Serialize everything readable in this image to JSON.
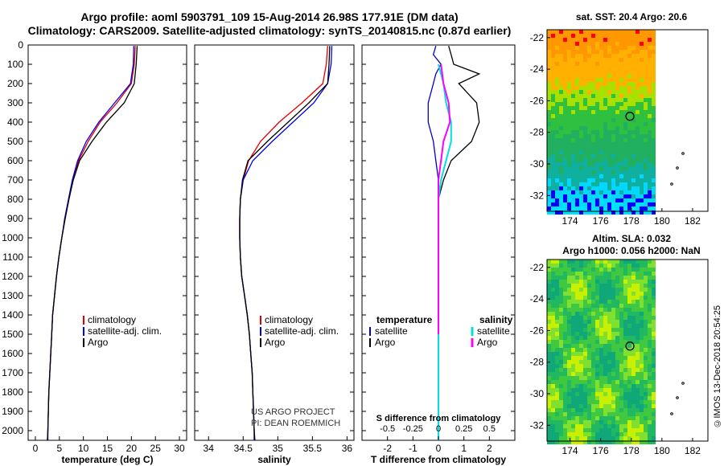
{
  "header": {
    "line1": "Argo profile: aoml 5903791_109 15-Aug-2014 26.98S 177.91E (DM data)",
    "line2": "Climatology: CARS2009. Satellite-adjusted climatology: synTS_20140815.nc (0.87d earlier)"
  },
  "stamp": "©IMOS 13-Dec-2018 20:54:25",
  "colors": {
    "climatology": "#e00000",
    "satellite": "#0000ee",
    "argo": "#000000",
    "t_sat": "#0000cc",
    "s_sat": "#00e0e0",
    "s_argo": "#ff00ff"
  },
  "depth_ticks": [
    "0",
    "100",
    "200",
    "300",
    "400",
    "500",
    "600",
    "700",
    "800",
    "900",
    "1000",
    "1100",
    "1200",
    "1300",
    "1400",
    "1500",
    "1600",
    "1700",
    "1800",
    "1900",
    "2000"
  ],
  "panels": [
    {
      "id": "temperature",
      "xlabel": "temperature (deg C)",
      "xticks": [
        0,
        5,
        10,
        15,
        20,
        25,
        30
      ],
      "xlim": [
        -1.5,
        31.5
      ],
      "legend": [
        "climatology",
        "satellite-adj. clim.",
        "Argo"
      ]
    },
    {
      "id": "salinity",
      "xlabel": "salinity",
      "xticks": [
        34,
        34.5,
        35,
        35.5,
        36
      ],
      "xlim": [
        33.8,
        36.1
      ],
      "legend": [
        "climatology",
        "satellite-adj. clim.",
        "Argo"
      ],
      "note1": "US ARGO PROJECT",
      "note2": "PI: DEAN ROEMMICH"
    },
    {
      "id": "difference",
      "xlabel": "T difference from climatology",
      "xlabel_top": "S difference from climatology",
      "xticks_T": [
        "-2",
        "-1",
        "0",
        "1",
        "2"
      ],
      "xticks_S": [
        "-0.5",
        "-0.25",
        "0",
        "0.25",
        "0.5"
      ],
      "legend_left_title": "temperature",
      "legend_right_title": "salinity",
      "legend_left": [
        "satellite",
        "Argo"
      ],
      "legend_right": [
        "satellite",
        "Argo"
      ]
    }
  ],
  "maps": [
    {
      "title1": "sat. SST: 20.4  Argo: 20.6",
      "title2": "",
      "yticks": [
        "-22",
        "-24",
        "-26",
        "-28",
        "-30",
        "-32"
      ],
      "xticks": [
        "174",
        "176",
        "178",
        "180",
        "182"
      ]
    },
    {
      "title1": "Altim. SLA: 0.032",
      "title2": "Argo h1000: 0.056 h2000: NaN",
      "yticks": [
        "-22",
        "-24",
        "-26",
        "-28",
        "-30",
        "-32"
      ],
      "xticks": [
        "174",
        "176",
        "178",
        "180",
        "182"
      ]
    }
  ],
  "chart_data": [
    {
      "type": "line",
      "title": "",
      "xlabel": "temperature (deg C)",
      "ylabel": "",
      "xlim": [
        -1.5,
        31.5
      ],
      "ylim": [
        2050,
        0
      ],
      "series": [
        {
          "name": "climatology",
          "color": "#e00000",
          "points": [
            [
              20.8,
              5
            ],
            [
              20.6,
              100
            ],
            [
              20.0,
              200
            ],
            [
              17.0,
              300
            ],
            [
              13.5,
              400
            ],
            [
              11.0,
              500
            ],
            [
              9.0,
              600
            ],
            [
              7.8,
              700
            ],
            [
              7.0,
              800
            ],
            [
              6.2,
              900
            ],
            [
              5.5,
              1000
            ],
            [
              4.9,
              1100
            ],
            [
              4.4,
              1200
            ],
            [
              4.0,
              1300
            ],
            [
              3.6,
              1400
            ],
            [
              3.4,
              1500
            ],
            [
              3.2,
              1600
            ],
            [
              3.0,
              1700
            ],
            [
              2.8,
              1800
            ],
            [
              2.7,
              1900
            ],
            [
              2.6,
              2000
            ],
            [
              2.5,
              2050
            ]
          ]
        },
        {
          "name": "satellite-adj. clim.",
          "color": "#0000ee",
          "points": [
            [
              20.5,
              5
            ],
            [
              20.4,
              100
            ],
            [
              19.8,
              200
            ],
            [
              16.5,
              300
            ],
            [
              13.2,
              400
            ],
            [
              10.6,
              500
            ],
            [
              8.8,
              600
            ],
            [
              7.7,
              700
            ],
            [
              6.9,
              800
            ],
            [
              6.1,
              900
            ],
            [
              5.5,
              1000
            ],
            [
              4.9,
              1100
            ],
            [
              4.4,
              1200
            ],
            [
              4.0,
              1300
            ],
            [
              3.6,
              1400
            ],
            [
              3.4,
              1500
            ],
            [
              3.2,
              1600
            ],
            [
              3.0,
              1700
            ],
            [
              2.8,
              1800
            ],
            [
              2.7,
              1900
            ],
            [
              2.6,
              2000
            ],
            [
              2.5,
              2050
            ]
          ]
        },
        {
          "name": "Argo",
          "color": "#000000",
          "points": [
            [
              21.2,
              5
            ],
            [
              21.0,
              100
            ],
            [
              20.6,
              200
            ],
            [
              18.5,
              300
            ],
            [
              14.8,
              400
            ],
            [
              11.8,
              500
            ],
            [
              9.2,
              600
            ],
            [
              7.9,
              700
            ],
            [
              7.0,
              800
            ],
            [
              6.2,
              900
            ],
            [
              5.5,
              1000
            ],
            [
              4.9,
              1100
            ],
            [
              4.4,
              1200
            ],
            [
              4.0,
              1300
            ],
            [
              3.6,
              1400
            ],
            [
              3.4,
              1500
            ],
            [
              3.2,
              1600
            ],
            [
              3.0,
              1700
            ],
            [
              2.8,
              1800
            ],
            [
              2.7,
              1900
            ],
            [
              2.6,
              2000
            ],
            [
              2.6,
              2050
            ]
          ]
        }
      ]
    },
    {
      "type": "line",
      "title": "",
      "xlabel": "salinity",
      "ylabel": "",
      "xlim": [
        33.8,
        36.1
      ],
      "ylim": [
        2050,
        0
      ],
      "series": [
        {
          "name": "climatology",
          "color": "#e00000",
          "points": [
            [
              35.72,
              5
            ],
            [
              35.7,
              100
            ],
            [
              35.65,
              200
            ],
            [
              35.35,
              300
            ],
            [
              35.02,
              400
            ],
            [
              34.75,
              500
            ],
            [
              34.58,
              600
            ],
            [
              34.5,
              700
            ],
            [
              34.46,
              800
            ],
            [
              34.45,
              900
            ],
            [
              34.45,
              1000
            ],
            [
              34.46,
              1100
            ],
            [
              34.48,
              1200
            ],
            [
              34.52,
              1300
            ],
            [
              34.56,
              1400
            ],
            [
              34.59,
              1500
            ],
            [
              34.61,
              1600
            ],
            [
              34.63,
              1700
            ],
            [
              34.64,
              1800
            ],
            [
              34.65,
              1900
            ],
            [
              34.66,
              2000
            ],
            [
              34.66,
              2050
            ]
          ]
        },
        {
          "name": "satellite-adj. clim.",
          "color": "#0000ee",
          "points": [
            [
              35.78,
              5
            ],
            [
              35.77,
              100
            ],
            [
              35.72,
              200
            ],
            [
              35.52,
              300
            ],
            [
              35.22,
              400
            ],
            [
              34.92,
              500
            ],
            [
              34.64,
              600
            ],
            [
              34.5,
              700
            ],
            [
              34.46,
              800
            ],
            [
              34.45,
              900
            ],
            [
              34.45,
              1000
            ],
            [
              34.46,
              1100
            ],
            [
              34.48,
              1200
            ],
            [
              34.52,
              1300
            ],
            [
              34.56,
              1400
            ],
            [
              34.59,
              1500
            ],
            [
              34.61,
              1600
            ],
            [
              34.63,
              1700
            ],
            [
              34.64,
              1800
            ],
            [
              34.65,
              1900
            ],
            [
              34.66,
              2000
            ],
            [
              34.66,
              2050
            ]
          ]
        },
        {
          "name": "Argo",
          "color": "#000000",
          "points": [
            [
              35.75,
              5
            ],
            [
              35.74,
              100
            ],
            [
              35.72,
              200
            ],
            [
              35.45,
              300
            ],
            [
              35.15,
              400
            ],
            [
              34.85,
              500
            ],
            [
              34.57,
              600
            ],
            [
              34.49,
              700
            ],
            [
              34.46,
              800
            ],
            [
              34.45,
              900
            ],
            [
              34.45,
              1000
            ],
            [
              34.46,
              1100
            ],
            [
              34.48,
              1200
            ],
            [
              34.52,
              1300
            ],
            [
              34.56,
              1400
            ],
            [
              34.59,
              1500
            ],
            [
              34.61,
              1600
            ],
            [
              34.63,
              1700
            ],
            [
              34.64,
              1800
            ],
            [
              34.65,
              1900
            ],
            [
              34.66,
              2000
            ],
            [
              34.67,
              2050
            ]
          ]
        }
      ]
    },
    {
      "type": "line",
      "title": "",
      "xlabel": "T difference from climatology",
      "ylabel": "",
      "xlim": [
        -3,
        3
      ],
      "ylim": [
        2050,
        0
      ],
      "series": [
        {
          "name": "temperature satellite",
          "color": "#0000cc",
          "points": [
            [
              -0.1,
              5
            ],
            [
              -0.2,
              50
            ],
            [
              0.1,
              100
            ],
            [
              -0.1,
              150
            ],
            [
              -0.2,
              200
            ],
            [
              -0.4,
              300
            ],
            [
              -0.4,
              400
            ],
            [
              -0.3,
              450
            ],
            [
              -0.2,
              500
            ],
            [
              -0.1,
              600
            ],
            [
              0.0,
              700
            ],
            [
              0.0,
              800
            ],
            [
              0,
              900
            ],
            [
              0,
              1000
            ],
            [
              0,
              1100
            ],
            [
              0,
              1200
            ],
            [
              0,
              1300
            ],
            [
              0,
              1400
            ],
            [
              0,
              1500
            ]
          ]
        },
        {
          "name": "temperature Argo",
          "color": "#000000",
          "points": [
            [
              0.4,
              5
            ],
            [
              0.5,
              50
            ],
            [
              0.6,
              100
            ],
            [
              1.6,
              150
            ],
            [
              0.8,
              200
            ],
            [
              1.5,
              300
            ],
            [
              1.6,
              400
            ],
            [
              1.3,
              500
            ],
            [
              0.5,
              600
            ],
            [
              0.2,
              700
            ],
            [
              0.0,
              800
            ],
            [
              0,
              900
            ],
            [
              0,
              1000
            ],
            [
              0,
              1100
            ],
            [
              0,
              1200
            ],
            [
              0,
              1300
            ],
            [
              0,
              1400
            ],
            [
              0,
              1500
            ]
          ]
        },
        {
          "name": "salinity satellite",
          "color": "#00e0e0",
          "points": [
            [
              0.0,
              100
            ],
            [
              0.2,
              200
            ],
            [
              0.3,
              300
            ],
            [
              0.5,
              400
            ],
            [
              0.5,
              500
            ],
            [
              0.3,
              600
            ],
            [
              0.1,
              700
            ],
            [
              0.0,
              800
            ],
            [
              0,
              900
            ],
            [
              0,
              1000
            ],
            [
              0,
              1200
            ],
            [
              0,
              1400
            ],
            [
              0,
              1600
            ],
            [
              0,
              1800
            ],
            [
              0,
              2000
            ],
            [
              0,
              2050
            ]
          ]
        },
        {
          "name": "salinity Argo",
          "color": "#ff00ff",
          "points": [
            [
              0.1,
              100
            ],
            [
              0.2,
              200
            ],
            [
              0.4,
              300
            ],
            [
              0.45,
              400
            ],
            [
              0.2,
              500
            ],
            [
              0.1,
              600
            ],
            [
              0.0,
              700
            ],
            [
              0,
              900
            ],
            [
              0,
              1200
            ],
            [
              0,
              1500
            ]
          ]
        }
      ]
    },
    {
      "type": "heatmap",
      "title": "sat. SST: 20.4  Argo: 20.6",
      "xticks": [
        174,
        176,
        178,
        180,
        182
      ],
      "yticks": [
        -22,
        -24,
        -26,
        -28,
        -30,
        -32
      ],
      "xlim": [
        172.5,
        183
      ],
      "ylim": [
        -33,
        -21.5
      ],
      "marker": [
        177.91,
        -26.98
      ]
    },
    {
      "type": "heatmap",
      "title": "Altim. SLA: 0.032",
      "subtitle": "Argo h1000: 0.056 h2000: NaN",
      "xticks": [
        174,
        176,
        178,
        180,
        182
      ],
      "yticks": [
        -22,
        -24,
        -26,
        -28,
        -30,
        -32
      ],
      "xlim": [
        172.5,
        183
      ],
      "ylim": [
        -33,
        -21.5
      ],
      "marker": [
        177.91,
        -26.98
      ]
    }
  ]
}
